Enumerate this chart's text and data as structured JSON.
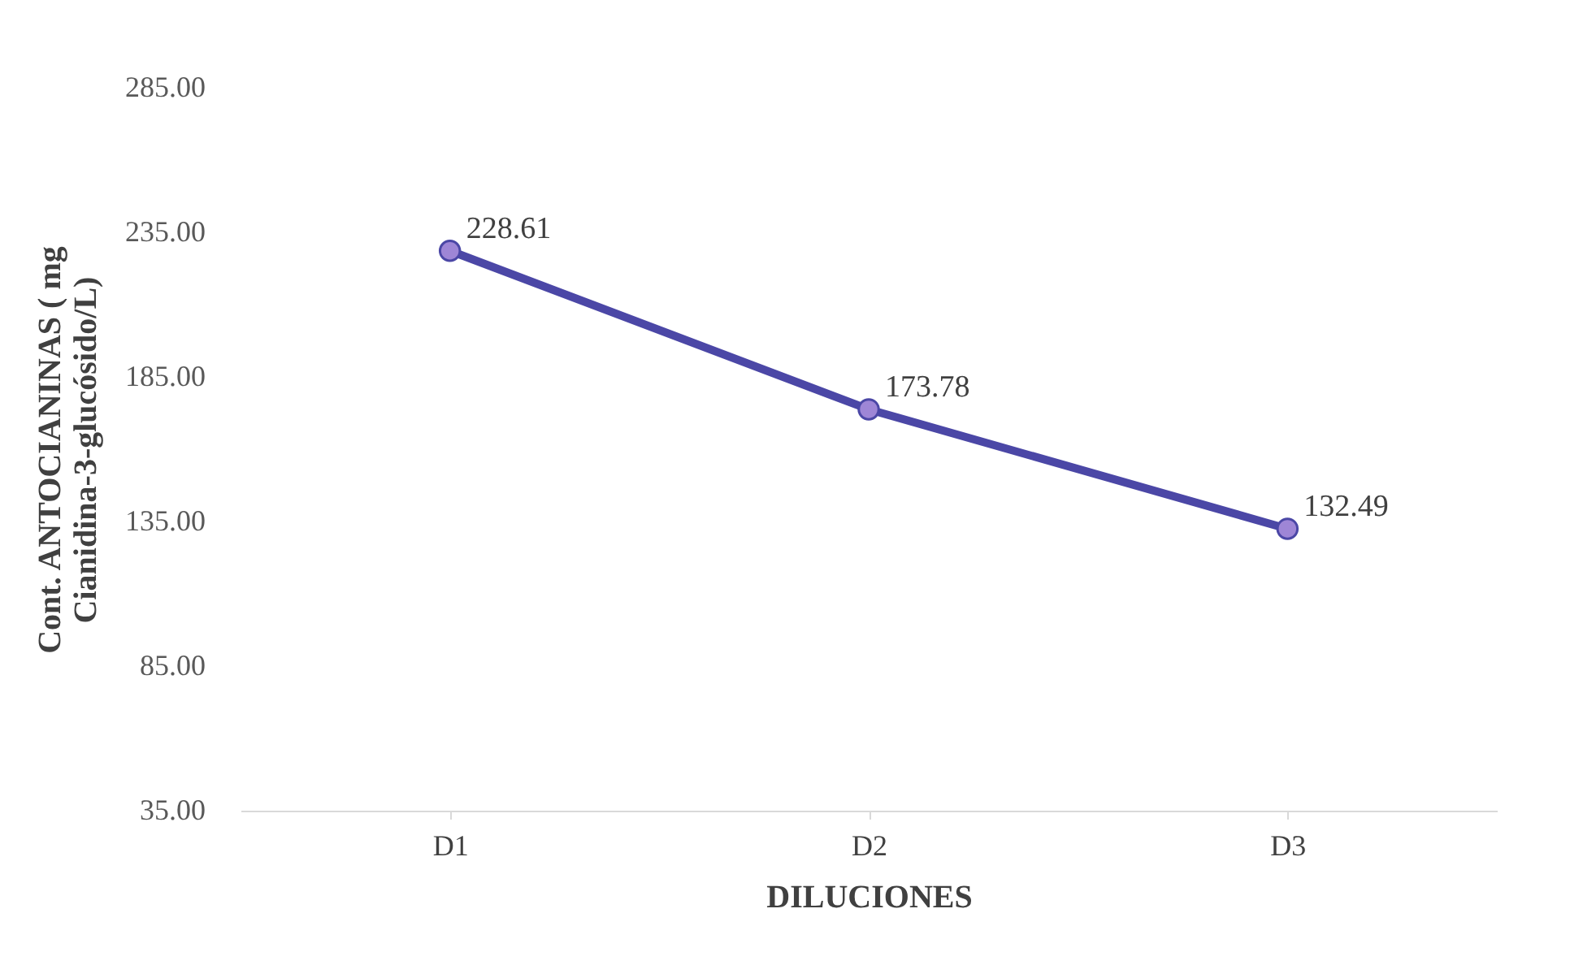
{
  "chart_data": {
    "type": "line",
    "xlabel": "DILUCIONES",
    "ylabel": "Cont. ANTOCIANINAS ( mg\nCianidina-3-glucósido/L)",
    "categories": [
      "D1",
      "D2",
      "D3"
    ],
    "series": [
      {
        "color": "#4b47a6",
        "values": [
          228.61,
          173.78,
          132.49
        ]
      }
    ],
    "ylim": [
      35,
      285
    ],
    "yticks": [
      {
        "value": 35,
        "label": "35.00"
      },
      {
        "value": 85,
        "label": "85.00"
      },
      {
        "value": 135,
        "label": "135.00"
      },
      {
        "value": 185,
        "label": "185.00"
      },
      {
        "value": 235,
        "label": "235.00"
      },
      {
        "value": 285,
        "label": "285.00"
      }
    ],
    "data_labels": true,
    "marker": "circle",
    "line_style": "solid",
    "grid": false
  }
}
